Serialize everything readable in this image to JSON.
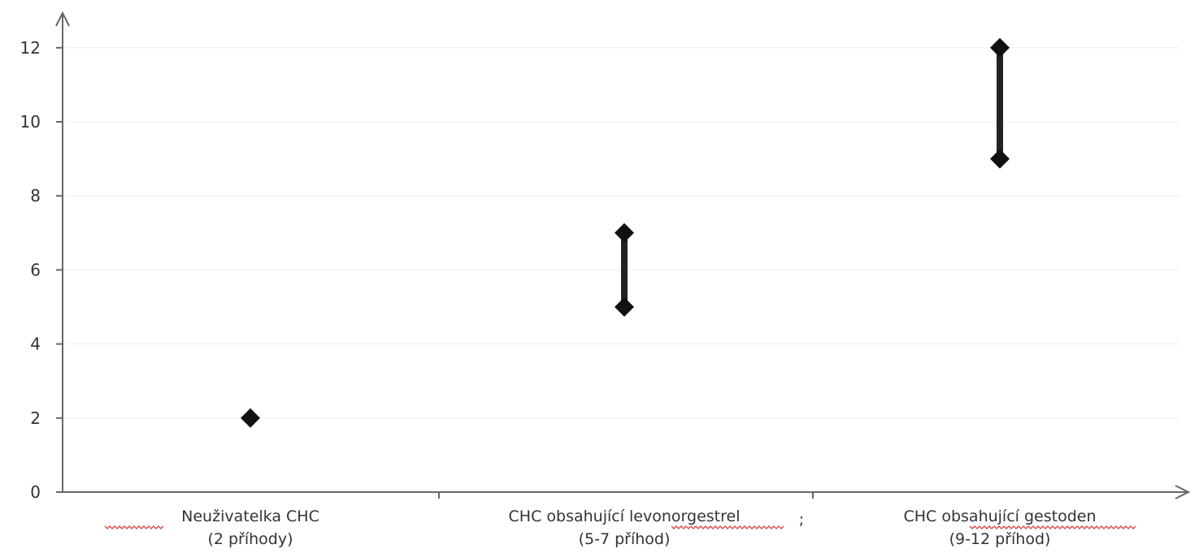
{
  "chart_data": {
    "type": "range",
    "categories": [
      {
        "line1": "Neuživatelka CHC",
        "line2": "(2 příhody)",
        "suffix": ""
      },
      {
        "line1": "CHC obsahující levonorgestrel",
        "line2": "(5-7 příhod)",
        "suffix": ";"
      },
      {
        "line1": "CHC obsahující gestoden",
        "line2": "(9-12 příhod)",
        "suffix": ""
      }
    ],
    "ranges": [
      {
        "low": 2,
        "high": 2
      },
      {
        "low": 5,
        "high": 7
      },
      {
        "low": 9,
        "high": 12
      }
    ],
    "yticks": [
      "0",
      "2",
      "4",
      "6",
      "8",
      "10",
      "12"
    ],
    "ylim": [
      0,
      12.8
    ],
    "grid": true,
    "marker": "diamond",
    "colors": {
      "marker": "#111111",
      "bar": "#222222",
      "axis": "#666666",
      "grid": "#eeeeee"
    }
  }
}
